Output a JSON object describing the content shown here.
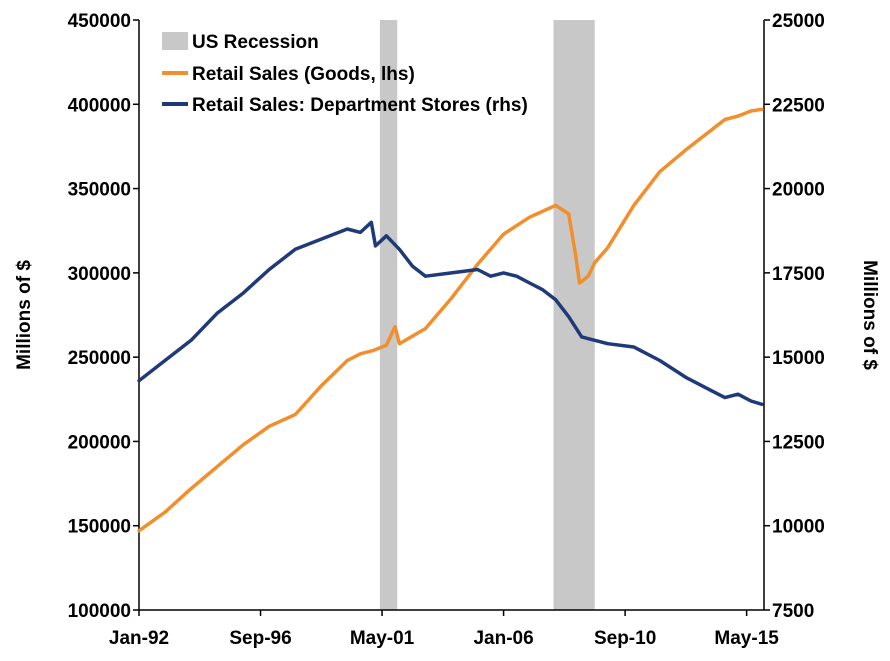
{
  "chart_data": {
    "type": "line",
    "title": "",
    "x_tick_labels": [
      "Jan-92",
      "Sep-96",
      "May-01",
      "Jan-06",
      "Sep-10",
      "May-15"
    ],
    "x_tick_dates": [
      1992.0,
      1996.667,
      2001.333,
      2006.0,
      2010.667,
      2015.333
    ],
    "x_range": [
      1992.0,
      2016.0
    ],
    "y_left": {
      "label": "Millions of $",
      "range": [
        100000,
        450000
      ],
      "ticks": [
        "100000",
        "150000",
        "200000",
        "250000",
        "300000",
        "350000",
        "400000",
        "450000"
      ]
    },
    "y_right": {
      "label": "Millions of $",
      "range": [
        7500,
        25000
      ],
      "ticks": [
        "7500",
        "10000",
        "12500",
        "15000",
        "17500",
        "20000",
        "22500",
        "25000"
      ]
    },
    "recessions": [
      {
        "name": "US Recession",
        "start": 2001.25,
        "end": 2001.917
      },
      {
        "name": "US Recession",
        "start": 2007.917,
        "end": 2009.5
      }
    ],
    "legend": {
      "placement": "top-left",
      "recession_label": "US Recession",
      "recession_color": "#c8c8c8"
    },
    "series": [
      {
        "name": "Retail Sales (Goods, lhs)",
        "axis": "left",
        "color": "#f28e2b",
        "x": [
          1992.0,
          1993.0,
          1994.0,
          1995.0,
          1996.0,
          1997.0,
          1998.0,
          1999.0,
          2000.0,
          2000.5,
          2001.0,
          2001.5,
          2001.83,
          2002.0,
          2003.0,
          2004.0,
          2005.0,
          2006.0,
          2007.0,
          2008.0,
          2008.5,
          2008.75,
          2008.92,
          2009.25,
          2009.5,
          2010.0,
          2011.0,
          2012.0,
          2013.0,
          2014.0,
          2014.5,
          2015.0,
          2015.5,
          2015.92
        ],
        "values": [
          147000,
          158000,
          172000,
          185000,
          198000,
          209000,
          216000,
          233000,
          248000,
          252000,
          254000,
          257000,
          268000,
          258000,
          267000,
          285000,
          305000,
          323000,
          333000,
          340000,
          335000,
          312000,
          294000,
          298000,
          306000,
          315000,
          340000,
          360000,
          373000,
          385000,
          391000,
          393000,
          396000,
          397000
        ]
      },
      {
        "name": "Retail Sales: Department Stores (rhs)",
        "axis": "right",
        "color": "#1f3a78",
        "x": [
          1992.0,
          1993.0,
          1994.0,
          1995.0,
          1996.0,
          1997.0,
          1998.0,
          1999.0,
          2000.0,
          2000.5,
          2000.92,
          2001.08,
          2001.5,
          2002.0,
          2002.5,
          2003.0,
          2004.0,
          2005.0,
          2005.5,
          2006.0,
          2006.5,
          2007.0,
          2007.5,
          2008.0,
          2008.5,
          2009.0,
          2009.5,
          2010.0,
          2011.0,
          2012.0,
          2013.0,
          2014.0,
          2014.5,
          2015.0,
          2015.5,
          2015.92
        ],
        "values": [
          14300,
          14900,
          15500,
          16300,
          16900,
          17600,
          18200,
          18500,
          18800,
          18700,
          19000,
          18300,
          18600,
          18200,
          17700,
          17400,
          17500,
          17600,
          17400,
          17500,
          17400,
          17200,
          17000,
          16700,
          16200,
          15600,
          15500,
          15400,
          15300,
          14900,
          14400,
          14000,
          13800,
          13900,
          13700,
          13600
        ]
      }
    ]
  }
}
